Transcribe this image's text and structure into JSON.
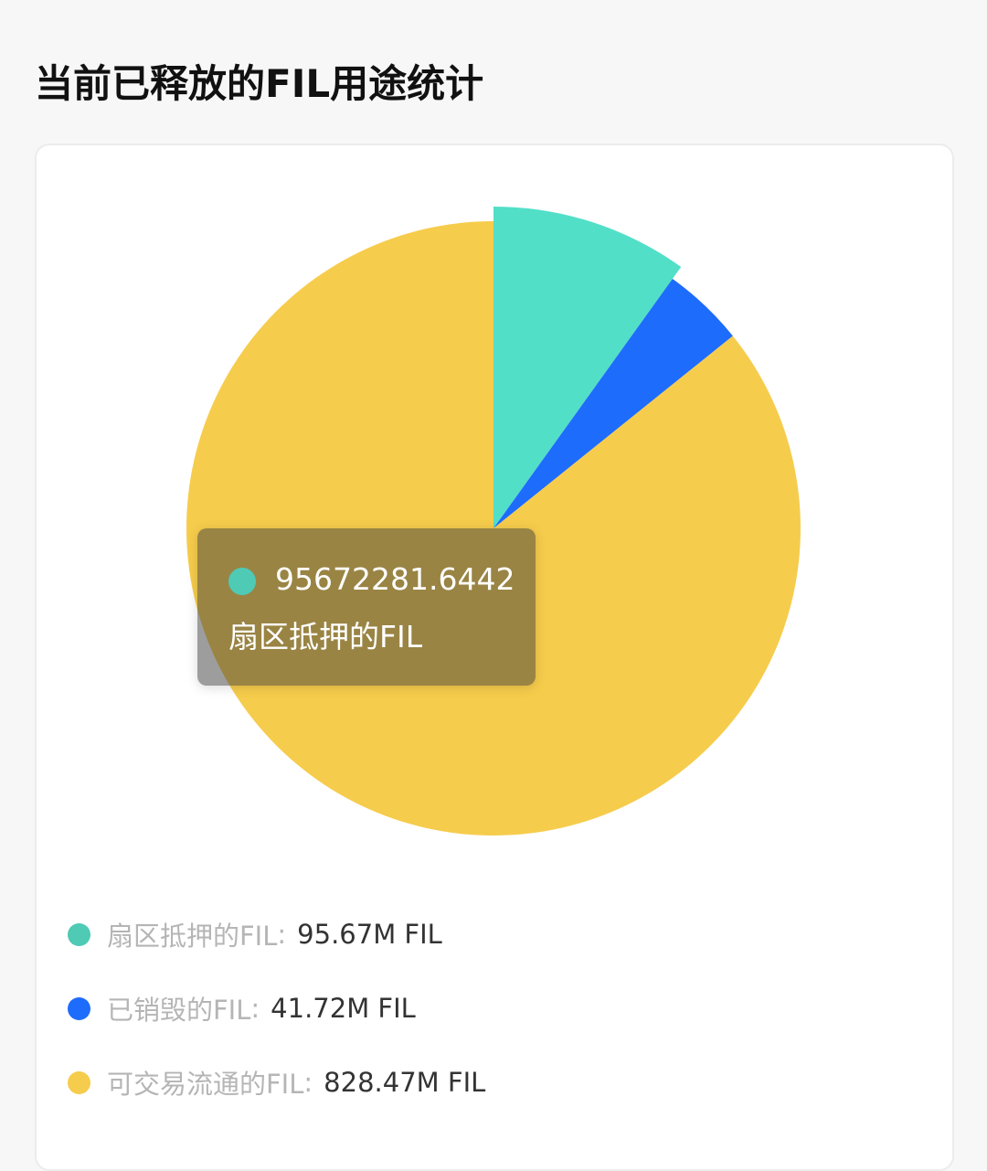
{
  "title": "当前已释放的FIL用途统计",
  "chart_data": {
    "type": "pie",
    "start_angle": "top",
    "direction": "clockwise",
    "series": [
      {
        "name": "扇区抵押的FIL",
        "value": 95672281.6442,
        "display": "95.67M FIL",
        "color": "#52dfc8",
        "legend_color": "#4ecab5",
        "highlighted": true
      },
      {
        "name": "已销毁的FIL",
        "value": 41720000,
        "display": "41.72M FIL",
        "color": "#1e6cfb",
        "legend_color": "#1e6cfb"
      },
      {
        "name": "可交易流通的FIL",
        "value": 828470000,
        "display": "828.47M FIL",
        "color": "#f6cc4c",
        "legend_color": "#f6cc4c"
      }
    ],
    "legend_position": "bottom",
    "legend_separator": ":"
  },
  "tooltip": {
    "value": "95672281.6442",
    "name": "扇区抵押的FIL",
    "color": "#4ecab5"
  }
}
